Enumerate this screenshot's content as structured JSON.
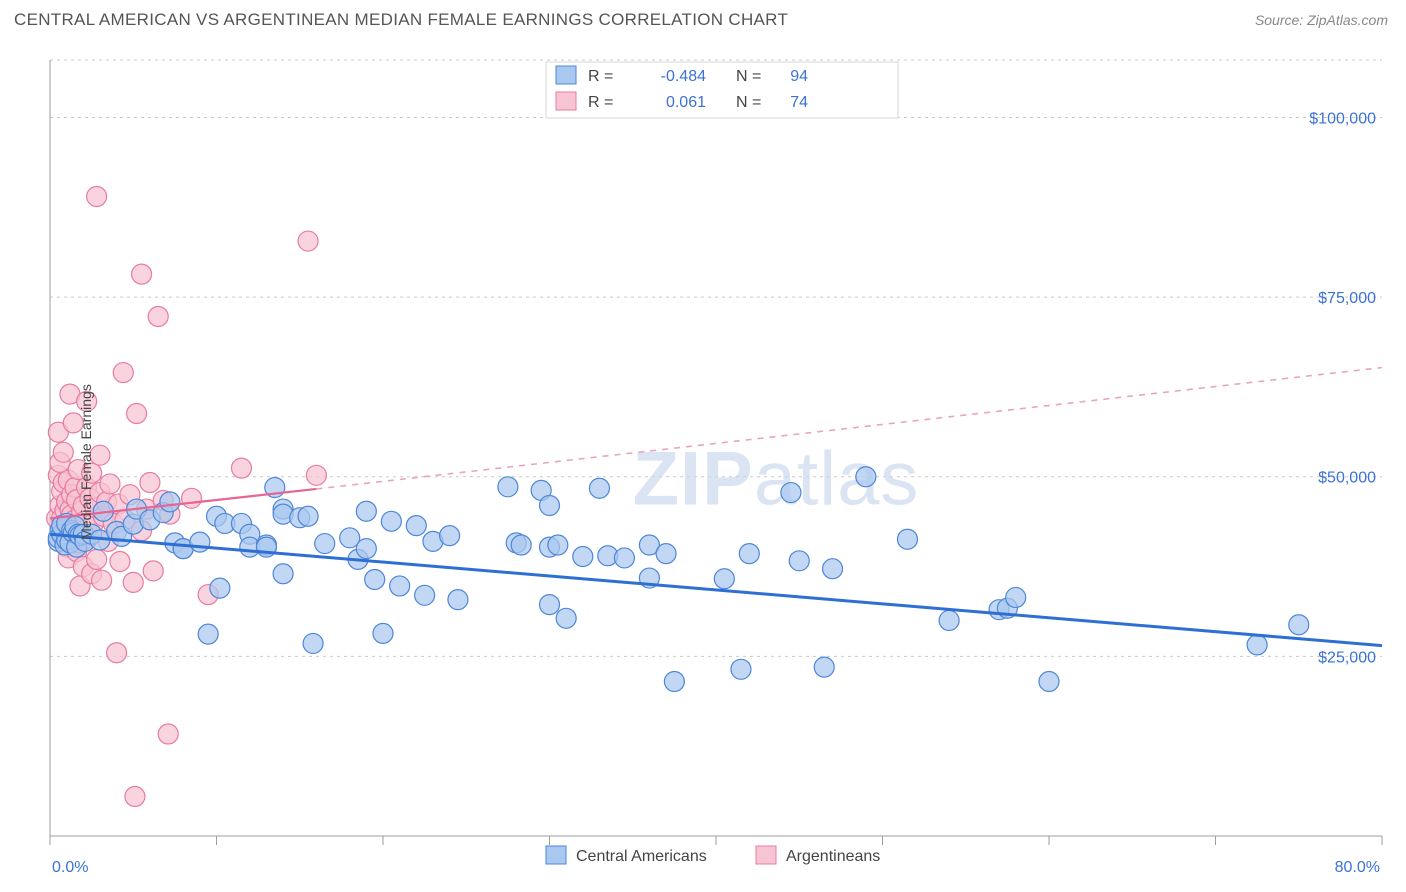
{
  "header": {
    "title": "CENTRAL AMERICAN VS ARGENTINEAN MEDIAN FEMALE EARNINGS CORRELATION CHART",
    "source_prefix": "Source: ",
    "source_name": "ZipAtlas.com"
  },
  "chart": {
    "type": "scatter",
    "background_color": "#ffffff",
    "grid_color": "#c9c9c9",
    "grid_dash": "3 4",
    "axis_color": "#9e9e9e",
    "ylabel": "Median Female Earnings",
    "ylabel_fontsize": 14,
    "ylabel_color": "#444444",
    "xlim": [
      0,
      80
    ],
    "ylim": [
      0,
      108000
    ],
    "yticks": [
      25000,
      50000,
      75000,
      100000
    ],
    "ytick_labels": [
      "$25,000",
      "$50,000",
      "$75,000",
      "$100,000"
    ],
    "ytick_color": "#3b72d6",
    "ytick_fontsize": 16,
    "xticks": [
      0,
      10,
      20,
      30,
      40,
      50,
      60,
      70,
      80
    ],
    "xtick_label_left": "0.0%",
    "xtick_label_right": "80.0%",
    "xtick_color": "#3b72d6",
    "xtick_fontsize": 16,
    "marker_radius": 10,
    "marker_stroke_width": 1.2,
    "watermark": {
      "text_bold": "ZIP",
      "text_rest": "atlas",
      "fontsize": 76,
      "color": "#c7d7ee",
      "opacity": 0.65
    },
    "series": [
      {
        "name": "Central Americans",
        "fill": "#a9c8ef",
        "stroke": "#4e86d8",
        "fill_opacity": 0.72,
        "R": "-0.484",
        "N": "94",
        "trend": {
          "x1": 0,
          "y1": 42000,
          "x2": 80,
          "y2": 26500,
          "color": "#2e6fd4",
          "stroke_width": 3
        },
        "points": [
          [
            0.5,
            41000
          ],
          [
            0.5,
            41500
          ],
          [
            0.6,
            42500
          ],
          [
            0.7,
            42000
          ],
          [
            0.7,
            43200
          ],
          [
            0.9,
            40500
          ],
          [
            1.0,
            41200
          ],
          [
            1.0,
            43500
          ],
          [
            1.2,
            40800
          ],
          [
            1.3,
            42500
          ],
          [
            1.4,
            42200
          ],
          [
            1.5,
            43100
          ],
          [
            1.6,
            40200
          ],
          [
            1.7,
            42000
          ],
          [
            1.8,
            41800
          ],
          [
            2.0,
            42000
          ],
          [
            2.1,
            41000
          ],
          [
            2.5,
            42000
          ],
          [
            3.0,
            41200
          ],
          [
            3.2,
            45200
          ],
          [
            4.0,
            42400
          ],
          [
            4.3,
            41700
          ],
          [
            5.0,
            43400
          ],
          [
            5.2,
            45500
          ],
          [
            6.0,
            44000
          ],
          [
            6.8,
            45000
          ],
          [
            7.2,
            46500
          ],
          [
            7.5,
            40800
          ],
          [
            8.0,
            40000
          ],
          [
            8.0,
            40000
          ],
          [
            9.0,
            40900
          ],
          [
            9.5,
            28100
          ],
          [
            10.0,
            44500
          ],
          [
            10.2,
            34500
          ],
          [
            10.5,
            43500
          ],
          [
            11.5,
            43500
          ],
          [
            12.0,
            42000
          ],
          [
            12.0,
            40200
          ],
          [
            13.0,
            40500
          ],
          [
            13.0,
            40200
          ],
          [
            13.5,
            48500
          ],
          [
            14.0,
            45500
          ],
          [
            14.0,
            44800
          ],
          [
            14.0,
            36500
          ],
          [
            15.0,
            44300
          ],
          [
            15.5,
            44500
          ],
          [
            15.8,
            26800
          ],
          [
            16.5,
            40700
          ],
          [
            20.0,
            28200
          ],
          [
            18.5,
            38500
          ],
          [
            18.0,
            41500
          ],
          [
            19.0,
            40000
          ],
          [
            19.5,
            35700
          ],
          [
            19.0,
            45200
          ],
          [
            20.5,
            43800
          ],
          [
            21.0,
            34800
          ],
          [
            22.0,
            43200
          ],
          [
            22.5,
            33500
          ],
          [
            23.0,
            41000
          ],
          [
            24.0,
            41800
          ],
          [
            24.5,
            32900
          ],
          [
            27.5,
            48600
          ],
          [
            28.0,
            40800
          ],
          [
            28.3,
            40500
          ],
          [
            29.5,
            48100
          ],
          [
            30.0,
            46000
          ],
          [
            30.0,
            40200
          ],
          [
            30.5,
            40500
          ],
          [
            30.0,
            32200
          ],
          [
            31.0,
            30300
          ],
          [
            32.0,
            38900
          ],
          [
            33.0,
            48400
          ],
          [
            33.5,
            39000
          ],
          [
            34.5,
            38700
          ],
          [
            36.0,
            35900
          ],
          [
            36.0,
            40500
          ],
          [
            37.0,
            39300
          ],
          [
            37.5,
            21500
          ],
          [
            40.5,
            35800
          ],
          [
            41.5,
            23200
          ],
          [
            42.0,
            39300
          ],
          [
            44.5,
            47800
          ],
          [
            45.0,
            38300
          ],
          [
            46.5,
            23500
          ],
          [
            47.0,
            37200
          ],
          [
            49.0,
            50000
          ],
          [
            51.5,
            41300
          ],
          [
            54.0,
            30000
          ],
          [
            57.0,
            31500
          ],
          [
            57.5,
            31700
          ],
          [
            58.0,
            33200
          ],
          [
            60.0,
            21500
          ],
          [
            72.5,
            26600
          ],
          [
            75.0,
            29400
          ]
        ]
      },
      {
        "name": "Argentineans",
        "fill": "#f6c4d3",
        "stroke": "#e87ba1",
        "fill_opacity": 0.72,
        "R": "0.061",
        "N": "74",
        "trend": {
          "x1": 0,
          "y1": 44200,
          "x_solid_end": 16,
          "y_solid_end": 48300,
          "x2": 80,
          "y2": 65200,
          "solid_color": "#e76593",
          "solid_stroke_width": 2.2,
          "dash_color": "#e9a5be",
          "dash_stroke_width": 1.6,
          "dash": "6 6"
        },
        "points": [
          [
            0.4,
            44200
          ],
          [
            0.5,
            50200
          ],
          [
            0.5,
            56200
          ],
          [
            0.6,
            46000
          ],
          [
            0.6,
            52000
          ],
          [
            0.7,
            44200
          ],
          [
            0.7,
            48000
          ],
          [
            0.8,
            49200
          ],
          [
            0.8,
            53400
          ],
          [
            0.9,
            45300
          ],
          [
            1.0,
            40200
          ],
          [
            1.0,
            42600
          ],
          [
            1.0,
            46500
          ],
          [
            1.1,
            38700
          ],
          [
            1.1,
            49500
          ],
          [
            1.2,
            45400
          ],
          [
            1.2,
            61500
          ],
          [
            1.3,
            44700
          ],
          [
            1.3,
            47500
          ],
          [
            1.4,
            42500
          ],
          [
            1.4,
            57500
          ],
          [
            1.5,
            44000
          ],
          [
            1.5,
            48500
          ],
          [
            1.6,
            39600
          ],
          [
            1.6,
            46800
          ],
          [
            1.7,
            43100
          ],
          [
            1.7,
            51000
          ],
          [
            1.8,
            40800
          ],
          [
            1.8,
            34800
          ],
          [
            1.9,
            45200
          ],
          [
            2.0,
            46000
          ],
          [
            2.0,
            37500
          ],
          [
            2.1,
            43800
          ],
          [
            2.2,
            48500
          ],
          [
            2.2,
            60500
          ],
          [
            2.3,
            41500
          ],
          [
            2.4,
            47000
          ],
          [
            2.5,
            36500
          ],
          [
            2.5,
            50500
          ],
          [
            2.6,
            43500
          ],
          [
            2.7,
            45700
          ],
          [
            2.8,
            89000
          ],
          [
            2.8,
            38500
          ],
          [
            3.0,
            47800
          ],
          [
            3.0,
            53000
          ],
          [
            3.1,
            35600
          ],
          [
            3.2,
            44500
          ],
          [
            3.4,
            46500
          ],
          [
            3.5,
            41000
          ],
          [
            3.6,
            49000
          ],
          [
            3.8,
            43500
          ],
          [
            4.0,
            25500
          ],
          [
            4.1,
            46200
          ],
          [
            4.2,
            38200
          ],
          [
            4.4,
            64500
          ],
          [
            4.5,
            44000
          ],
          [
            4.8,
            47500
          ],
          [
            5.0,
            35300
          ],
          [
            5.1,
            5500
          ],
          [
            5.2,
            58800
          ],
          [
            5.5,
            42500
          ],
          [
            5.5,
            78200
          ],
          [
            5.8,
            45500
          ],
          [
            6.0,
            49200
          ],
          [
            6.2,
            36900
          ],
          [
            6.5,
            72300
          ],
          [
            6.8,
            46700
          ],
          [
            7.1,
            14200
          ],
          [
            7.2,
            44800
          ],
          [
            8.5,
            47000
          ],
          [
            9.5,
            33600
          ],
          [
            11.5,
            51200
          ],
          [
            15.5,
            82800
          ],
          [
            16.0,
            50200
          ]
        ]
      }
    ],
    "legend_top": {
      "R_label": "R =",
      "N_label": "N =",
      "border_color": "#d7d7d7",
      "bg_color": "#ffffff",
      "text_color": "#444444",
      "value_color": "#3b72d6",
      "fontsize": 16
    },
    "legend_bottom": {
      "items": [
        "Central Americans",
        "Argentineans"
      ],
      "fontsize": 16,
      "text_color": "#444444"
    }
  }
}
